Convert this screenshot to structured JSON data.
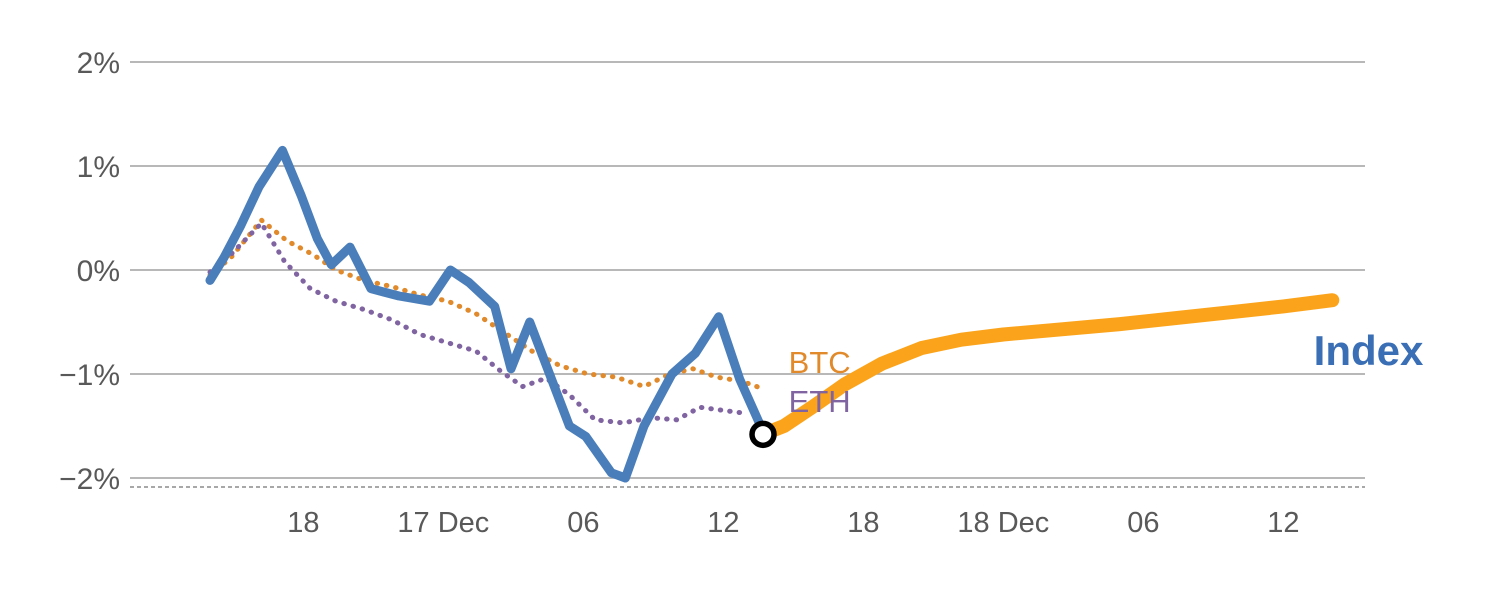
{
  "chart_data": {
    "type": "line",
    "title": "",
    "description": "Crypto index intraday performance (%) with BTC and ETH components and an orange projected index path",
    "grid": "horizontal",
    "x_axis": {
      "unit": "time",
      "range_t_hours": [
        -3.43,
        49.5
      ],
      "ticks": [
        {
          "t": 4,
          "label": "18"
        },
        {
          "t": 10,
          "label": "17 Dec"
        },
        {
          "t": 16,
          "label": "06"
        },
        {
          "t": 22,
          "label": "12"
        },
        {
          "t": 28,
          "label": "18"
        },
        {
          "t": 34,
          "label": "18 Dec"
        },
        {
          "t": 40,
          "label": "06"
        },
        {
          "t": 46,
          "label": "12"
        }
      ]
    },
    "y_axis": {
      "unit": "percent",
      "range": [
        -2,
        2
      ],
      "ticks": [
        {
          "v": 2,
          "label": "2%"
        },
        {
          "v": 1,
          "label": "1%"
        },
        {
          "v": 0,
          "label": "0%"
        },
        {
          "v": -1,
          "label": "−1%"
        },
        {
          "v": -2,
          "label": "−2%"
        }
      ]
    },
    "colors": {
      "index_line": "#4A7EBB",
      "index_label": "#3A6EB5",
      "btc": "#E18A2B",
      "eth": "#8064A2",
      "forecast": "#FBA41B",
      "grid": "#A0A0A0",
      "axis_dashed": "#8C8C8C",
      "tick_text": "#595959",
      "marker_stroke": "#000000",
      "marker_fill": "#FFFFFF"
    },
    "series": [
      {
        "name": "BTC",
        "style": "dotted",
        "width": 5,
        "color": "#E18A2B",
        "points": [
          [
            0,
            -0.05
          ],
          [
            0.9,
            0.12
          ],
          [
            2.2,
            0.48
          ],
          [
            3.3,
            0.28
          ],
          [
            4.4,
            0.15
          ],
          [
            5.4,
            0.0
          ],
          [
            6.6,
            -0.1
          ],
          [
            7.8,
            -0.16
          ],
          [
            9.0,
            -0.24
          ],
          [
            10.2,
            -0.3
          ],
          [
            11.4,
            -0.42
          ],
          [
            12.6,
            -0.6
          ],
          [
            13.8,
            -0.78
          ],
          [
            15.0,
            -0.92
          ],
          [
            16.2,
            -1.0
          ],
          [
            17.4,
            -1.03
          ],
          [
            18.6,
            -1.12
          ],
          [
            19.7,
            -1.0
          ],
          [
            20.7,
            -0.95
          ],
          [
            21.7,
            -1.03
          ],
          [
            22.8,
            -1.07
          ],
          [
            23.8,
            -1.15
          ]
        ]
      },
      {
        "name": "ETH",
        "style": "dotted",
        "width": 5,
        "color": "#8064A2",
        "points": [
          [
            0,
            -0.02
          ],
          [
            0.9,
            0.15
          ],
          [
            2.2,
            0.45
          ],
          [
            3.2,
            0.08
          ],
          [
            4.3,
            -0.18
          ],
          [
            5.4,
            -0.3
          ],
          [
            6.6,
            -0.38
          ],
          [
            7.8,
            -0.48
          ],
          [
            9.0,
            -0.62
          ],
          [
            10.2,
            -0.7
          ],
          [
            11.4,
            -0.78
          ],
          [
            12.5,
            -0.98
          ],
          [
            13.4,
            -1.12
          ],
          [
            14.4,
            -1.04
          ],
          [
            15.4,
            -1.2
          ],
          [
            16.5,
            -1.44
          ],
          [
            17.7,
            -1.47
          ],
          [
            18.9,
            -1.42
          ],
          [
            20.0,
            -1.44
          ],
          [
            21.0,
            -1.32
          ],
          [
            22.0,
            -1.35
          ],
          [
            23.0,
            -1.38
          ]
        ]
      },
      {
        "name": "Index",
        "style": "solid",
        "width": 9,
        "color": "#4A7EBB",
        "points": [
          [
            0,
            -0.1
          ],
          [
            0.6,
            0.12
          ],
          [
            1.3,
            0.42
          ],
          [
            2.1,
            0.8
          ],
          [
            3.1,
            1.15
          ],
          [
            3.9,
            0.72
          ],
          [
            4.6,
            0.3
          ],
          [
            5.2,
            0.05
          ],
          [
            6.0,
            0.22
          ],
          [
            6.9,
            -0.18
          ],
          [
            8.1,
            -0.25
          ],
          [
            9.4,
            -0.3
          ],
          [
            10.3,
            0.0
          ],
          [
            11.1,
            -0.12
          ],
          [
            12.2,
            -0.35
          ],
          [
            12.9,
            -0.95
          ],
          [
            13.7,
            -0.5
          ],
          [
            15.4,
            -1.5
          ],
          [
            16.1,
            -1.6
          ],
          [
            17.2,
            -1.95
          ],
          [
            17.8,
            -2.0
          ],
          [
            18.6,
            -1.5
          ],
          [
            19.8,
            -1.0
          ],
          [
            20.8,
            -0.8
          ],
          [
            21.8,
            -0.45
          ],
          [
            22.7,
            -1.05
          ],
          [
            23.7,
            -1.55
          ]
        ]
      },
      {
        "name": "Index projection",
        "style": "solid",
        "width": 14,
        "color": "#FBA41B",
        "points": [
          [
            23.7,
            -1.58
          ],
          [
            24.6,
            -1.5
          ],
          [
            25.8,
            -1.32
          ],
          [
            27.2,
            -1.1
          ],
          [
            28.8,
            -0.9
          ],
          [
            30.5,
            -0.75
          ],
          [
            32.2,
            -0.67
          ],
          [
            34,
            -0.62
          ],
          [
            36.5,
            -0.57
          ],
          [
            39,
            -0.52
          ],
          [
            41.5,
            -0.46
          ],
          [
            44,
            -0.4
          ],
          [
            46,
            -0.35
          ],
          [
            48.1,
            -0.29
          ]
        ]
      }
    ],
    "marker": {
      "t": 23.7,
      "v": -1.58,
      "radius": 11,
      "stroke_width": 5.5
    },
    "labels": [
      {
        "text": "BTC",
        "color": "#E18A2B",
        "t": 24.8,
        "v": -0.9,
        "size": 31,
        "bold": false
      },
      {
        "text": "ETH",
        "color": "#8064A2",
        "t": 24.8,
        "v": -1.28,
        "size": 31,
        "bold": false
      },
      {
        "text": "Index",
        "color": "#3A6EB5",
        "t": 47.3,
        "v": -0.8,
        "size": 42,
        "bold": true
      }
    ]
  }
}
